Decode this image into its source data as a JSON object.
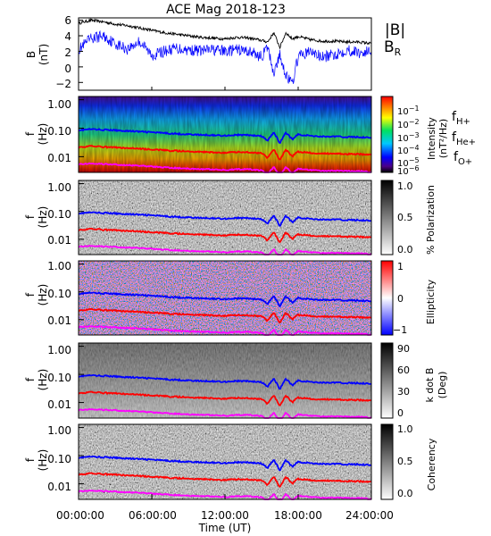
{
  "title": "ACE Mag 2018-123",
  "x_axis": {
    "label": "Time (UT)",
    "ticks": [
      "00:00:00",
      "06:00:00",
      "12:00:00",
      "18:00:00",
      "24:00:00"
    ],
    "range_hours": [
      0,
      24
    ]
  },
  "colors": {
    "B_total": "#000000",
    "B_R": "#0000ff",
    "f_H": "#0000ff",
    "f_He": "#ff0000",
    "f_O": "#ff00ff"
  },
  "panels": {
    "b": {
      "ylabel": "B",
      "yunit": "(nT)",
      "yticks": [
        "6",
        "4",
        "2",
        "0",
        "−2"
      ],
      "ylim": [
        -3,
        6.3
      ],
      "legend_total": "|B|",
      "legend_r": "B",
      "legend_r_sub": "R"
    },
    "intensity": {
      "ylabel": "f",
      "yunit": "(Hz)",
      "yticks": [
        "1.00",
        "0.10",
        "0.01"
      ],
      "cbar_label": "Intensity",
      "cbar_label2": "(nT²/Hz)",
      "cbar_ticks": [
        "10",
        "10",
        "10",
        "10",
        "10",
        "10"
      ],
      "cbar_exps": [
        "−1",
        "−2",
        "−3",
        "−4",
        "−5",
        "−6"
      ],
      "legend": [
        {
          "main": "f",
          "sub": "H+"
        },
        {
          "main": "f",
          "sub": "He+"
        },
        {
          "main": "f",
          "sub": "O+"
        }
      ]
    },
    "polarization": {
      "ylabel": "f",
      "yunit": "(Hz)",
      "yticks": [
        "1.00",
        "0.10",
        "0.01"
      ],
      "cbar_label": "% Polarization",
      "cbar_ticks": [
        "1.0",
        "0.5",
        "0.0"
      ]
    },
    "ellipticity": {
      "ylabel": "f",
      "yunit": "(Hz)",
      "yticks": [
        "1.00",
        "0.10",
        "0.01"
      ],
      "cbar_label": "Ellipticity",
      "cbar_ticks": [
        "1",
        "0",
        "−1"
      ]
    },
    "kdotb": {
      "ylabel": "f",
      "yunit": "(Hz)",
      "yticks": [
        "1.00",
        "0.10",
        "0.01"
      ],
      "cbar_label": "k dot B",
      "cbar_label2": "(Deg)",
      "cbar_ticks": [
        "90",
        "60",
        "30",
        "0"
      ]
    },
    "coherency": {
      "ylabel": "f",
      "yunit": "(Hz)",
      "yticks": [
        "1.00",
        "0.10",
        "0.01"
      ],
      "cbar_label": "Coherency",
      "cbar_ticks": [
        "1.0",
        "0.5",
        "0.0"
      ]
    }
  },
  "chart_data": {
    "type": "line",
    "x_hours": [
      0,
      1,
      2,
      3,
      4,
      5,
      6,
      7,
      8,
      9,
      10,
      11,
      12,
      13,
      14,
      15,
      15.5,
      16,
      16.5,
      17,
      17.5,
      18,
      19,
      20,
      21,
      22,
      23,
      24
    ],
    "B_total_nT": [
      5.6,
      6.0,
      5.8,
      5.5,
      5.3,
      5.0,
      4.7,
      4.4,
      4.2,
      4.0,
      3.8,
      3.7,
      3.6,
      3.8,
      3.7,
      3.4,
      3.2,
      4.4,
      2.5,
      4.4,
      3.6,
      3.9,
      3.5,
      3.3,
      3.3,
      3.2,
      3.2,
      3.0
    ],
    "B_R_nT": [
      2.2,
      3.6,
      4.0,
      3.0,
      2.3,
      3.3,
      1.5,
      2.0,
      2.4,
      2.2,
      2.1,
      2.2,
      2.0,
      2.2,
      2.0,
      1.3,
      2.5,
      -0.8,
      1.5,
      -1.0,
      -2.3,
      1.3,
      2.0,
      1.2,
      1.6,
      2.2,
      1.8,
      2.0
    ],
    "f_H_plus_Hz": [
      0.085,
      0.092,
      0.088,
      0.084,
      0.08,
      0.076,
      0.072,
      0.067,
      0.064,
      0.061,
      0.058,
      0.057,
      0.055,
      0.058,
      0.057,
      0.052,
      0.036,
      0.068,
      0.028,
      0.068,
      0.04,
      0.06,
      0.054,
      0.051,
      0.051,
      0.049,
      0.049,
      0.046
    ],
    "f_He_plus_Hz": [
      0.0213,
      0.023,
      0.022,
      0.021,
      0.02,
      0.019,
      0.018,
      0.0168,
      0.016,
      0.0153,
      0.0145,
      0.0142,
      0.0138,
      0.0145,
      0.0142,
      0.013,
      0.009,
      0.017,
      0.007,
      0.017,
      0.01,
      0.015,
      0.0135,
      0.0128,
      0.0128,
      0.0123,
      0.0123,
      0.0115
    ],
    "f_O_plus_Hz": [
      0.0053,
      0.0058,
      0.0055,
      0.0053,
      0.005,
      0.0048,
      0.0045,
      0.0042,
      0.004,
      0.0038,
      0.0036,
      0.0036,
      0.0034,
      0.0036,
      0.0036,
      0.0033,
      0.0023,
      0.0043,
      0.0018,
      0.0043,
      0.0025,
      0.0038,
      0.0034,
      0.0032,
      0.0032,
      0.0031,
      0.0031,
      0.0029
    ]
  }
}
